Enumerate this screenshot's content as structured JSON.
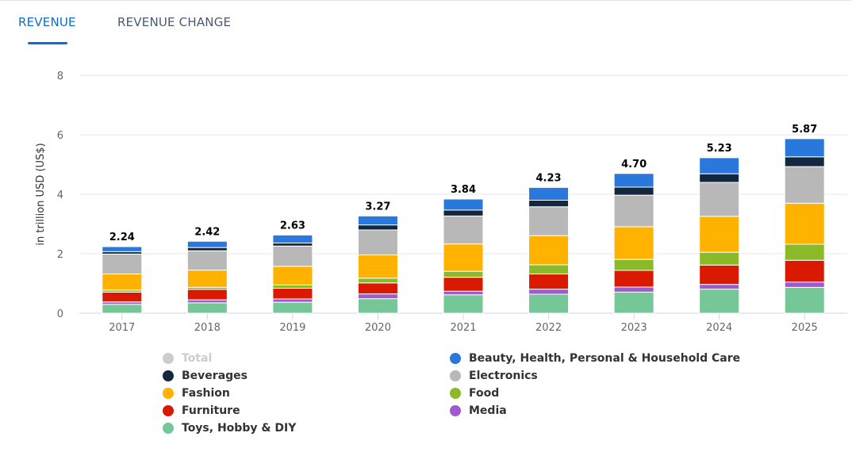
{
  "tabs": [
    {
      "label": "REVENUE",
      "active": true
    },
    {
      "label": "REVENUE CHANGE",
      "active": false
    }
  ],
  "accent": "#0a6ecf",
  "chart_data": {
    "type": "bar",
    "stacked": true,
    "ylabel": "in trillion USD (US$)",
    "xlabel": "",
    "ylim": [
      0,
      8
    ],
    "yticks": [
      0,
      2,
      4,
      6,
      8
    ],
    "grid": true,
    "legend_position": "bottom",
    "categories": [
      "2017",
      "2018",
      "2019",
      "2020",
      "2021",
      "2022",
      "2023",
      "2024",
      "2025"
    ],
    "totals": [
      "2.24",
      "2.42",
      "2.63",
      "3.27",
      "3.84",
      "4.23",
      "4.70",
      "5.23",
      "5.87"
    ],
    "series": [
      {
        "name": "Toys, Hobby & DIY",
        "color": "#75c798",
        "values": [
          0.3,
          0.35,
          0.37,
          0.49,
          0.62,
          0.64,
          0.71,
          0.81,
          0.87
        ]
      },
      {
        "name": "Media",
        "color": "#a05ad0",
        "values": [
          0.08,
          0.1,
          0.11,
          0.16,
          0.12,
          0.17,
          0.17,
          0.16,
          0.18
        ]
      },
      {
        "name": "Furniture",
        "color": "#d91a00",
        "values": [
          0.33,
          0.35,
          0.36,
          0.37,
          0.47,
          0.51,
          0.56,
          0.65,
          0.73
        ]
      },
      {
        "name": "Food",
        "color": "#8aba27",
        "values": [
          0.07,
          0.07,
          0.11,
          0.16,
          0.2,
          0.31,
          0.37,
          0.43,
          0.54
        ]
      },
      {
        "name": "Fashion",
        "color": "#ffb200",
        "values": [
          0.54,
          0.58,
          0.63,
          0.78,
          0.92,
          0.98,
          1.1,
          1.21,
          1.38
        ]
      },
      {
        "name": "Electronics",
        "color": "#b8b8b8",
        "values": [
          0.67,
          0.65,
          0.68,
          0.84,
          0.94,
          0.97,
          1.06,
          1.14,
          1.23
        ]
      },
      {
        "name": "Beverages",
        "color": "#13283f",
        "values": [
          0.08,
          0.11,
          0.1,
          0.17,
          0.2,
          0.22,
          0.27,
          0.29,
          0.33
        ]
      },
      {
        "name": "Beauty, Health, Personal & Household Care",
        "color": "#2a78dc",
        "values": [
          0.17,
          0.21,
          0.27,
          0.3,
          0.37,
          0.43,
          0.46,
          0.54,
          0.61
        ]
      }
    ],
    "legend": [
      {
        "name": "Total",
        "color": "#cccccc",
        "hidden": true
      },
      {
        "name": "Beauty, Health, Personal & Household Care",
        "color": "#2a78dc"
      },
      {
        "name": "Beverages",
        "color": "#13283f"
      },
      {
        "name": "Electronics",
        "color": "#b8b8b8"
      },
      {
        "name": "Fashion",
        "color": "#ffb200"
      },
      {
        "name": "Food",
        "color": "#8aba27"
      },
      {
        "name": "Furniture",
        "color": "#d91a00"
      },
      {
        "name": "Media",
        "color": "#a05ad0"
      },
      {
        "name": "Toys, Hobby & DIY",
        "color": "#75c798"
      }
    ]
  }
}
